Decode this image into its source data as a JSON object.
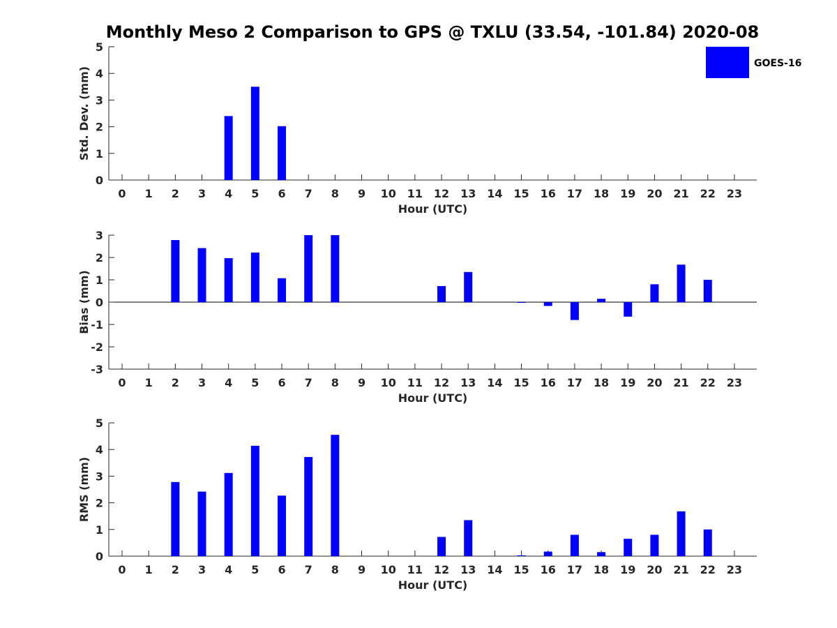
{
  "title": "Monthly Meso 2 Comparison to GPS @ TXLU (33.54, -101.84) 2020-08",
  "bar_color": "#0000ff",
  "legend": {
    "label": "GOES-16",
    "placement": "top-right"
  },
  "chart_data": [
    {
      "type": "bar",
      "ylabel": "Std. Dev. (mm)",
      "xlabel": "Hour (UTC)",
      "ylim": [
        0,
        5
      ],
      "yticks": [
        0,
        1,
        2,
        3,
        4,
        5
      ],
      "categories": [
        "0",
        "1",
        "2",
        "3",
        "4",
        "5",
        "6",
        "7",
        "8",
        "9",
        "10",
        "11",
        "12",
        "13",
        "14",
        "15",
        "16",
        "17",
        "18",
        "19",
        "20",
        "21",
        "22",
        "23"
      ],
      "series": [
        {
          "name": "GOES-16",
          "values": [
            null,
            null,
            null,
            null,
            2.4,
            3.5,
            2.02,
            null,
            null,
            null,
            null,
            null,
            null,
            null,
            null,
            null,
            null,
            null,
            null,
            null,
            null,
            null,
            null,
            null
          ]
        }
      ],
      "zero_line": false
    },
    {
      "type": "bar",
      "ylabel": "Bias (mm)",
      "xlabel": "Hour (UTC)",
      "ylim": [
        -3,
        3
      ],
      "yticks": [
        -3,
        -2,
        -1,
        0,
        1,
        2,
        3
      ],
      "categories": [
        "0",
        "1",
        "2",
        "3",
        "4",
        "5",
        "6",
        "7",
        "8",
        "9",
        "10",
        "11",
        "12",
        "13",
        "14",
        "15",
        "16",
        "17",
        "18",
        "19",
        "20",
        "21",
        "22",
        "23"
      ],
      "series": [
        {
          "name": "GOES-16",
          "values": [
            null,
            null,
            2.78,
            2.42,
            1.97,
            2.22,
            1.07,
            3.0,
            3.0,
            null,
            null,
            null,
            0.72,
            1.35,
            null,
            0.0,
            -0.17,
            -0.8,
            0.15,
            -0.65,
            0.8,
            1.68,
            1.0,
            null
          ]
        }
      ],
      "zero_line": true
    },
    {
      "type": "bar",
      "ylabel": "RMS (mm)",
      "xlabel": "Hour (UTC)",
      "ylim": [
        0,
        5
      ],
      "yticks": [
        0,
        1,
        2,
        3,
        4,
        5
      ],
      "categories": [
        "0",
        "1",
        "2",
        "3",
        "4",
        "5",
        "6",
        "7",
        "8",
        "9",
        "10",
        "11",
        "12",
        "13",
        "14",
        "15",
        "16",
        "17",
        "18",
        "19",
        "20",
        "21",
        "22",
        "23"
      ],
      "series": [
        {
          "name": "GOES-16",
          "values": [
            null,
            null,
            2.78,
            2.42,
            3.12,
            4.14,
            2.27,
            3.72,
            4.55,
            null,
            null,
            null,
            0.72,
            1.35,
            null,
            0.03,
            0.17,
            0.8,
            0.15,
            0.65,
            0.8,
            1.68,
            1.0,
            null
          ]
        }
      ],
      "zero_line": false
    }
  ]
}
